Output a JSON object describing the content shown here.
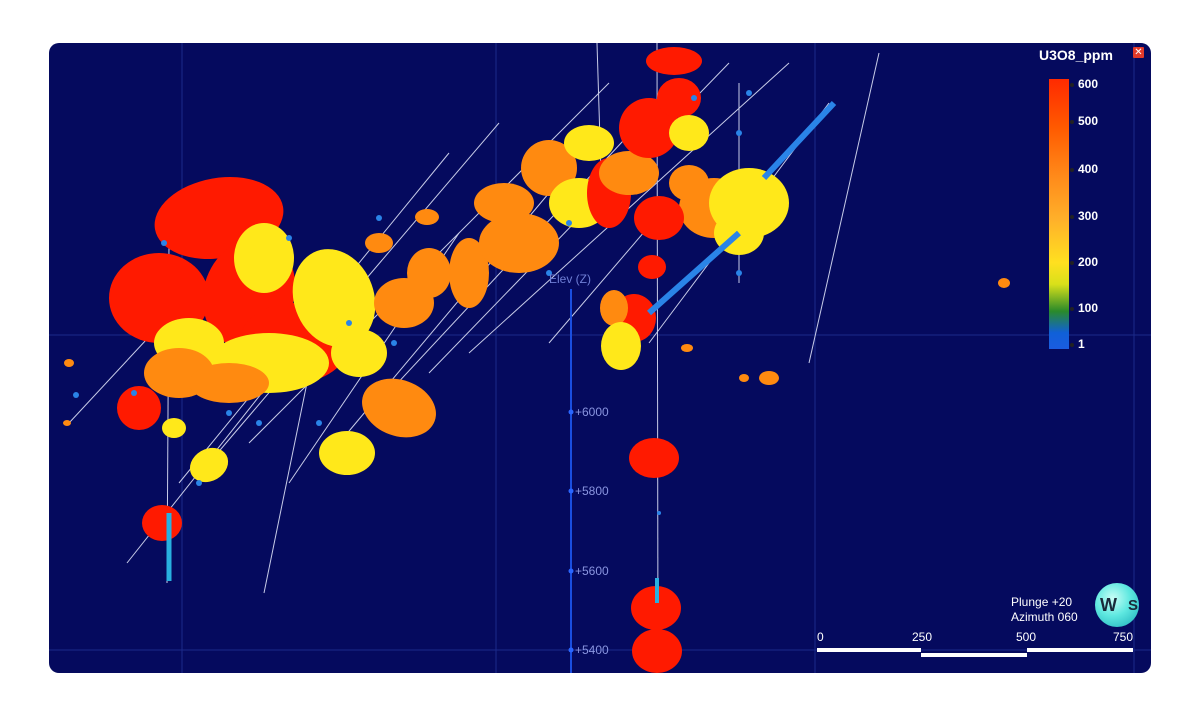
{
  "viewport": {
    "background": "#050a5e"
  },
  "legend": {
    "title": "U3O8_ppm",
    "close_icon": "close-icon",
    "ticks": [
      "600",
      "500",
      "400",
      "300",
      "200",
      "100",
      "1"
    ],
    "colors": [
      "#ff2a00",
      "#ff5a00",
      "#ff8a1a",
      "#ffb02a",
      "#ffe020",
      "#2a8a2a",
      "#1a5ce0"
    ]
  },
  "elevation_axis": {
    "title": "Elev (Z)",
    "ticks": [
      "+6000",
      "+5800",
      "+5600",
      "+5400"
    ]
  },
  "view": {
    "plunge": "Plunge +20",
    "azimuth": "Azimuth 060"
  },
  "compass": {
    "west": "W",
    "south": "S"
  },
  "scale_bar": {
    "labels": [
      "0",
      "250",
      "500",
      "750"
    ]
  }
}
